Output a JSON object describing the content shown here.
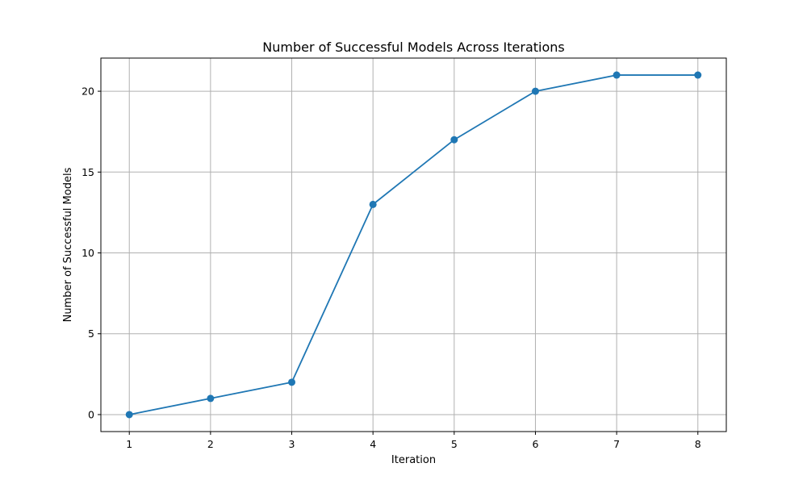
{
  "chart_data": {
    "type": "line",
    "title": "Number of Successful Models Across Iterations",
    "xlabel": "Iteration",
    "ylabel": "Number of Successful Models",
    "x": [
      1,
      2,
      3,
      4,
      5,
      6,
      7,
      8
    ],
    "xticks": [
      "1",
      "2",
      "3",
      "4",
      "5",
      "6",
      "7",
      "8"
    ],
    "yticks": [
      "0",
      "5",
      "10",
      "15",
      "20"
    ],
    "xlim": [
      0.65,
      8.35
    ],
    "ylim": [
      -1.05,
      22.05
    ],
    "grid": true,
    "series": [
      {
        "values": [
          0,
          1,
          2,
          13,
          17,
          20,
          21,
          21
        ],
        "color": "#1f77b4",
        "marker": "circle"
      }
    ]
  }
}
